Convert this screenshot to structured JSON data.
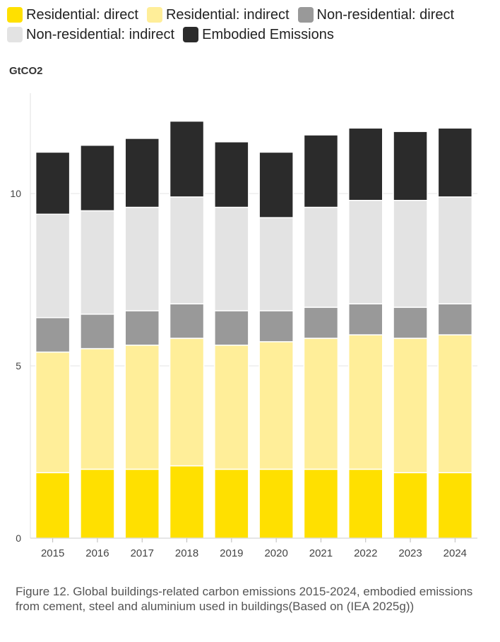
{
  "legend": [
    {
      "label": "Residential: direct",
      "color": "#FFE000"
    },
    {
      "label": "Residential: indirect",
      "color": "#FFEE99"
    },
    {
      "label": "Non-residential: direct",
      "color": "#999999"
    },
    {
      "label": "Non-residential: indirect",
      "color": "#E3E3E3"
    },
    {
      "label": "Embodied Emissions",
      "color": "#2B2B2B"
    }
  ],
  "unit_label": "GtCO2",
  "caption": "Figure 12. Global buildings-related carbon emissions 2015-2024, embodied emissions from cement, steel and aluminium used in buildings(Based on (IEA 2025g))",
  "chart_data": {
    "type": "bar",
    "stacked": true,
    "categories": [
      "2015",
      "2016",
      "2017",
      "2018",
      "2019",
      "2020",
      "2021",
      "2022",
      "2023",
      "2024"
    ],
    "series": [
      {
        "name": "Residential: direct",
        "color": "#FFE000",
        "values": [
          1.9,
          2.0,
          2.0,
          2.1,
          2.0,
          2.0,
          2.0,
          2.0,
          1.9,
          1.9
        ]
      },
      {
        "name": "Residential: indirect",
        "color": "#FFEE99",
        "values": [
          3.5,
          3.5,
          3.6,
          3.7,
          3.6,
          3.7,
          3.8,
          3.9,
          3.9,
          4.0
        ]
      },
      {
        "name": "Non-residential: direct",
        "color": "#999999",
        "values": [
          1.0,
          1.0,
          1.0,
          1.0,
          1.0,
          0.9,
          0.9,
          0.9,
          0.9,
          0.9
        ]
      },
      {
        "name": "Non-residential: indirect",
        "color": "#E3E3E3",
        "values": [
          3.0,
          3.0,
          3.0,
          3.1,
          3.0,
          2.7,
          2.9,
          3.0,
          3.1,
          3.1
        ]
      },
      {
        "name": "Embodied Emissions",
        "color": "#2B2B2B",
        "values": [
          1.8,
          1.9,
          2.0,
          2.2,
          1.9,
          1.9,
          2.1,
          2.1,
          2.0,
          2.0
        ]
      }
    ],
    "ylabel": "GtCO2",
    "ylim": [
      0,
      13
    ],
    "yticks": [
      0,
      5,
      10
    ],
    "grid": true,
    "legend_position": "top"
  }
}
